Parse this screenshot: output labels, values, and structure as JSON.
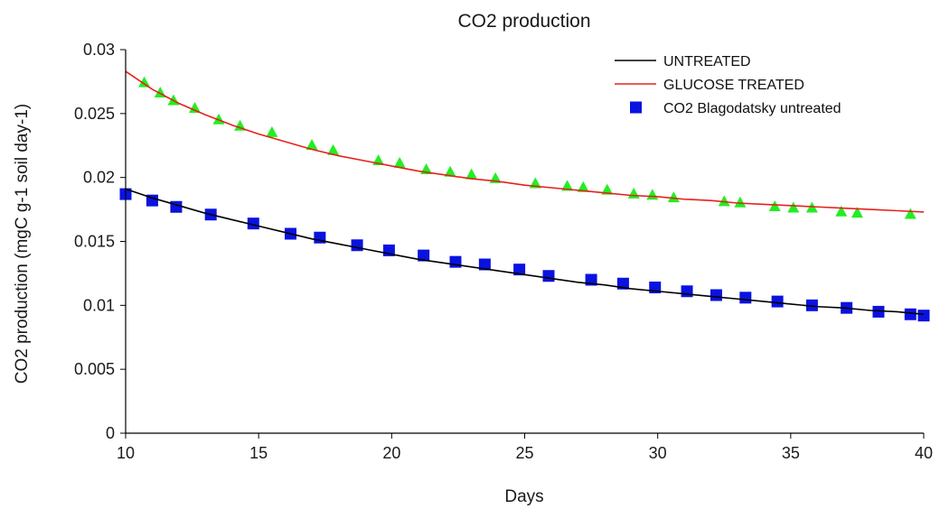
{
  "chart_data": {
    "type": "line",
    "title": "CO2 production",
    "xlabel": "Days",
    "ylabel": "CO2 production (mgC g-1 soil day-1)",
    "xlim": [
      10,
      40
    ],
    "ylim": [
      0,
      0.03
    ],
    "xticks": [
      "10",
      "15",
      "20",
      "25",
      "30",
      "35",
      "40"
    ],
    "yticks": [
      "0",
      "0.005",
      "0.01",
      "0.015",
      "0.02",
      "0.025",
      "0.03"
    ],
    "legend_position": "top-right",
    "series": [
      {
        "name": "UNTREATED",
        "kind": "line",
        "color": "#000000",
        "x": [
          10,
          11,
          12,
          13,
          14,
          15,
          16,
          17,
          18,
          19,
          20,
          21,
          22,
          23,
          24,
          25,
          26,
          27,
          28,
          29,
          30,
          31,
          32,
          33,
          34,
          35,
          36,
          37,
          38,
          39,
          40
        ],
        "y": [
          0.0191,
          0.0184,
          0.0178,
          0.0172,
          0.0167,
          0.0162,
          0.0157,
          0.0152,
          0.0148,
          0.0144,
          0.014,
          0.0136,
          0.0133,
          0.013,
          0.0127,
          0.0124,
          0.0121,
          0.0118,
          0.0116,
          0.0113,
          0.0111,
          0.0109,
          0.0107,
          0.0105,
          0.0103,
          0.0101,
          0.0099,
          0.0098,
          0.0096,
          0.0095,
          0.0093
        ]
      },
      {
        "name": "GLUCOSE TREATED",
        "kind": "line",
        "color": "#e8201a",
        "x": [
          10,
          11,
          12,
          13,
          14,
          15,
          16,
          17,
          18,
          19,
          20,
          21,
          22,
          23,
          24,
          25,
          26,
          27,
          28,
          29,
          30,
          31,
          32,
          33,
          34,
          35,
          36,
          37,
          38,
          39,
          40
        ],
        "y": [
          0.0283,
          0.0269,
          0.0258,
          0.0249,
          0.0241,
          0.0234,
          0.0228,
          0.0222,
          0.0217,
          0.0213,
          0.0209,
          0.0205,
          0.0202,
          0.0199,
          0.0197,
          0.0194,
          0.0192,
          0.019,
          0.0188,
          0.0186,
          0.0185,
          0.0183,
          0.0182,
          0.018,
          0.0179,
          0.0178,
          0.0177,
          0.0176,
          0.0175,
          0.0174,
          0.0173
        ]
      },
      {
        "name": "CO2 Blagodatsky untreated",
        "kind": "scatter",
        "marker": "square",
        "color": "#0a12e0",
        "x": [
          10.0,
          11.0,
          11.9,
          13.2,
          14.8,
          16.2,
          17.3,
          18.7,
          19.9,
          21.2,
          22.4,
          23.5,
          24.8,
          25.9,
          27.5,
          28.7,
          29.9,
          31.1,
          32.2,
          33.3,
          34.5,
          35.8,
          37.1,
          38.3,
          39.5,
          40.0
        ],
        "y": [
          0.0187,
          0.0182,
          0.0177,
          0.0171,
          0.0164,
          0.0156,
          0.0153,
          0.0147,
          0.0143,
          0.0139,
          0.0134,
          0.0132,
          0.0128,
          0.0123,
          0.012,
          0.0117,
          0.0114,
          0.0111,
          0.0108,
          0.0106,
          0.0103,
          0.01,
          0.0098,
          0.0095,
          0.0093,
          0.0092
        ]
      },
      {
        "kind": "scatter",
        "marker": "triangle",
        "color": "#22ee22",
        "x": [
          10.7,
          11.3,
          11.8,
          12.6,
          13.5,
          14.3,
          15.5,
          17.0,
          17.8,
          19.5,
          20.3,
          21.3,
          22.2,
          23.0,
          23.9,
          25.4,
          26.6,
          27.2,
          28.1,
          29.1,
          29.8,
          30.6,
          32.5,
          33.1,
          34.4,
          35.1,
          35.8,
          36.9,
          37.5,
          39.5
        ],
        "y": [
          0.0274,
          0.0266,
          0.026,
          0.0254,
          0.0245,
          0.024,
          0.0235,
          0.0225,
          0.0221,
          0.0213,
          0.0211,
          0.0206,
          0.0204,
          0.0202,
          0.0199,
          0.0195,
          0.0193,
          0.0192,
          0.019,
          0.0187,
          0.0186,
          0.0184,
          0.0181,
          0.018,
          0.0177,
          0.0176,
          0.0176,
          0.0173,
          0.0172,
          0.0171
        ]
      }
    ]
  }
}
